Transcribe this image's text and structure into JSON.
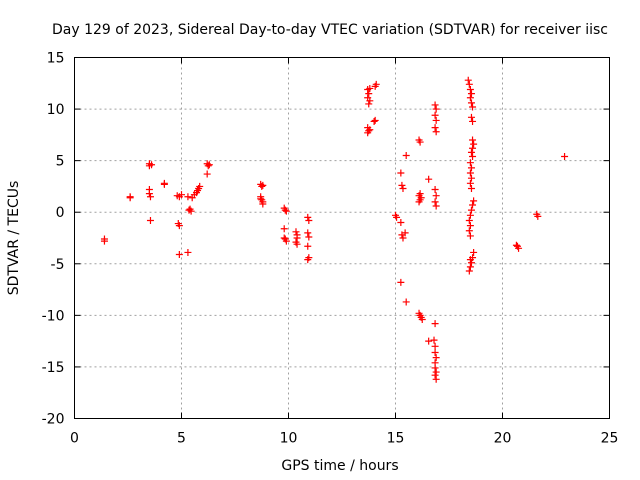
{
  "chart_data": {
    "type": "scatter",
    "title": "Day 129 of 2023, Sidereal Day-to-day VTEC variation (SDTVAR) for receiver iisc",
    "xlabel": "GPS time / hours",
    "ylabel": "SDTVAR / TECUs",
    "xlim": [
      0,
      25
    ],
    "ylim": [
      -20,
      15
    ],
    "xticks": [
      0,
      5,
      10,
      15,
      20,
      25
    ],
    "yticks": [
      -20,
      -15,
      -10,
      -5,
      0,
      5,
      10,
      15
    ],
    "xtick_labels": [
      "0",
      "5",
      "10",
      "15",
      "20",
      "25"
    ],
    "ytick_labels": [
      "-20",
      "-15",
      "-10",
      "-5",
      "0",
      "5",
      "10",
      "15"
    ],
    "grid": true,
    "marker": "+",
    "color": "#ff0000",
    "series": [
      {
        "name": "SDTVAR",
        "points": [
          [
            1.4,
            -2.6
          ],
          [
            1.4,
            -2.8
          ],
          [
            2.6,
            1.5
          ],
          [
            2.6,
            1.4
          ],
          [
            3.5,
            4.7
          ],
          [
            3.5,
            4.5
          ],
          [
            3.6,
            4.6
          ],
          [
            3.5,
            2.2
          ],
          [
            3.5,
            1.8
          ],
          [
            3.55,
            1.5
          ],
          [
            3.55,
            -0.8
          ],
          [
            4.2,
            2.8
          ],
          [
            4.2,
            2.7
          ],
          [
            4.8,
            1.6
          ],
          [
            4.9,
            1.5
          ],
          [
            5.0,
            1.7
          ],
          [
            4.85,
            -1.1
          ],
          [
            4.9,
            -1.3
          ],
          [
            4.9,
            -4.1
          ],
          [
            5.3,
            1.5
          ],
          [
            5.35,
            0.2
          ],
          [
            5.4,
            0.3
          ],
          [
            5.45,
            0.1
          ],
          [
            5.5,
            1.4
          ],
          [
            5.3,
            -3.9
          ],
          [
            5.6,
            1.7
          ],
          [
            5.7,
            1.9
          ],
          [
            5.75,
            2.1
          ],
          [
            5.8,
            2.3
          ],
          [
            5.85,
            2.5
          ],
          [
            6.2,
            4.7
          ],
          [
            6.25,
            4.5
          ],
          [
            6.3,
            4.6
          ],
          [
            6.2,
            3.7
          ],
          [
            8.7,
            2.7
          ],
          [
            8.75,
            2.5
          ],
          [
            8.8,
            2.6
          ],
          [
            8.7,
            1.5
          ],
          [
            8.75,
            1.2
          ],
          [
            8.8,
            1.0
          ],
          [
            8.8,
            0.8
          ],
          [
            8.7,
            1.3
          ],
          [
            9.8,
            0.4
          ],
          [
            9.85,
            0.2
          ],
          [
            9.9,
            0.1
          ],
          [
            9.8,
            -1.6
          ],
          [
            9.85,
            -2.6
          ],
          [
            9.9,
            -2.8
          ],
          [
            9.8,
            -2.5
          ],
          [
            10.35,
            -1.9
          ],
          [
            10.4,
            -2.2
          ],
          [
            10.4,
            -2.5
          ],
          [
            10.35,
            -2.9
          ],
          [
            10.4,
            -3.1
          ],
          [
            10.9,
            -0.5
          ],
          [
            10.95,
            -0.8
          ],
          [
            10.9,
            -2.0
          ],
          [
            10.95,
            -2.4
          ],
          [
            10.9,
            -3.3
          ],
          [
            10.95,
            -4.4
          ],
          [
            10.9,
            -4.6
          ],
          [
            13.7,
            11.9
          ],
          [
            13.75,
            11.5
          ],
          [
            13.7,
            11.1
          ],
          [
            13.8,
            10.8
          ],
          [
            13.75,
            10.5
          ],
          [
            13.8,
            12.0
          ],
          [
            13.7,
            8.2
          ],
          [
            13.75,
            7.9
          ],
          [
            13.7,
            7.7
          ],
          [
            13.8,
            8.0
          ],
          [
            14.05,
            12.2
          ],
          [
            14.1,
            12.4
          ],
          [
            14.0,
            8.8
          ],
          [
            14.05,
            8.9
          ],
          [
            15.0,
            -0.3
          ],
          [
            15.05,
            -0.5
          ],
          [
            15.25,
            3.8
          ],
          [
            15.3,
            2.6
          ],
          [
            15.35,
            2.3
          ],
          [
            15.25,
            -1.0
          ],
          [
            15.3,
            -2.2
          ],
          [
            15.35,
            -2.5
          ],
          [
            15.25,
            -6.8
          ],
          [
            15.5,
            5.5
          ],
          [
            15.45,
            -2.0
          ],
          [
            15.5,
            -8.7
          ],
          [
            16.1,
            7.0
          ],
          [
            16.15,
            6.8
          ],
          [
            16.1,
            1.6
          ],
          [
            16.15,
            1.2
          ],
          [
            16.2,
            1.4
          ],
          [
            16.1,
            1.0
          ],
          [
            16.15,
            1.8
          ],
          [
            16.1,
            -9.8
          ],
          [
            16.15,
            -10.0
          ],
          [
            16.2,
            -10.2
          ],
          [
            16.25,
            -10.4
          ],
          [
            16.55,
            3.2
          ],
          [
            16.55,
            -12.5
          ],
          [
            16.85,
            10.4
          ],
          [
            16.9,
            10.0
          ],
          [
            16.85,
            9.4
          ],
          [
            16.9,
            8.9
          ],
          [
            16.85,
            8.2
          ],
          [
            16.9,
            7.8
          ],
          [
            16.85,
            2.2
          ],
          [
            16.9,
            1.6
          ],
          [
            16.85,
            1.0
          ],
          [
            16.9,
            0.6
          ],
          [
            16.85,
            -10.8
          ],
          [
            16.8,
            -12.4
          ],
          [
            16.85,
            -13.0
          ],
          [
            16.85,
            -13.6
          ],
          [
            16.9,
            -14.1
          ],
          [
            16.85,
            -14.6
          ],
          [
            16.85,
            -15.1
          ],
          [
            16.9,
            -15.5
          ],
          [
            16.85,
            -15.8
          ],
          [
            16.9,
            -16.2
          ],
          [
            18.4,
            12.8
          ],
          [
            18.45,
            12.4
          ],
          [
            18.5,
            11.9
          ],
          [
            18.55,
            11.5
          ],
          [
            18.5,
            11.1
          ],
          [
            18.55,
            10.6
          ],
          [
            18.6,
            10.2
          ],
          [
            18.55,
            9.2
          ],
          [
            18.6,
            8.8
          ],
          [
            18.6,
            7.0
          ],
          [
            18.65,
            6.6
          ],
          [
            18.6,
            6.2
          ],
          [
            18.55,
            5.8
          ],
          [
            18.6,
            5.4
          ],
          [
            18.5,
            4.8
          ],
          [
            18.55,
            4.3
          ],
          [
            18.5,
            3.8
          ],
          [
            18.55,
            3.3
          ],
          [
            18.5,
            2.8
          ],
          [
            18.55,
            2.3
          ],
          [
            18.65,
            1.1
          ],
          [
            18.6,
            0.7
          ],
          [
            18.55,
            0.2
          ],
          [
            18.5,
            -0.3
          ],
          [
            18.45,
            -0.8
          ],
          [
            18.5,
            -1.3
          ],
          [
            18.45,
            -1.8
          ],
          [
            18.5,
            -2.3
          ],
          [
            18.65,
            -3.9
          ],
          [
            18.6,
            -4.4
          ],
          [
            18.55,
            -4.9
          ],
          [
            18.5,
            -5.3
          ],
          [
            18.45,
            -5.7
          ],
          [
            18.5,
            -4.6
          ],
          [
            20.7,
            -3.3
          ],
          [
            20.75,
            -3.5
          ],
          [
            20.65,
            -3.2
          ],
          [
            21.6,
            -0.2
          ],
          [
            21.65,
            -0.4
          ],
          [
            22.9,
            5.4
          ]
        ]
      }
    ]
  }
}
